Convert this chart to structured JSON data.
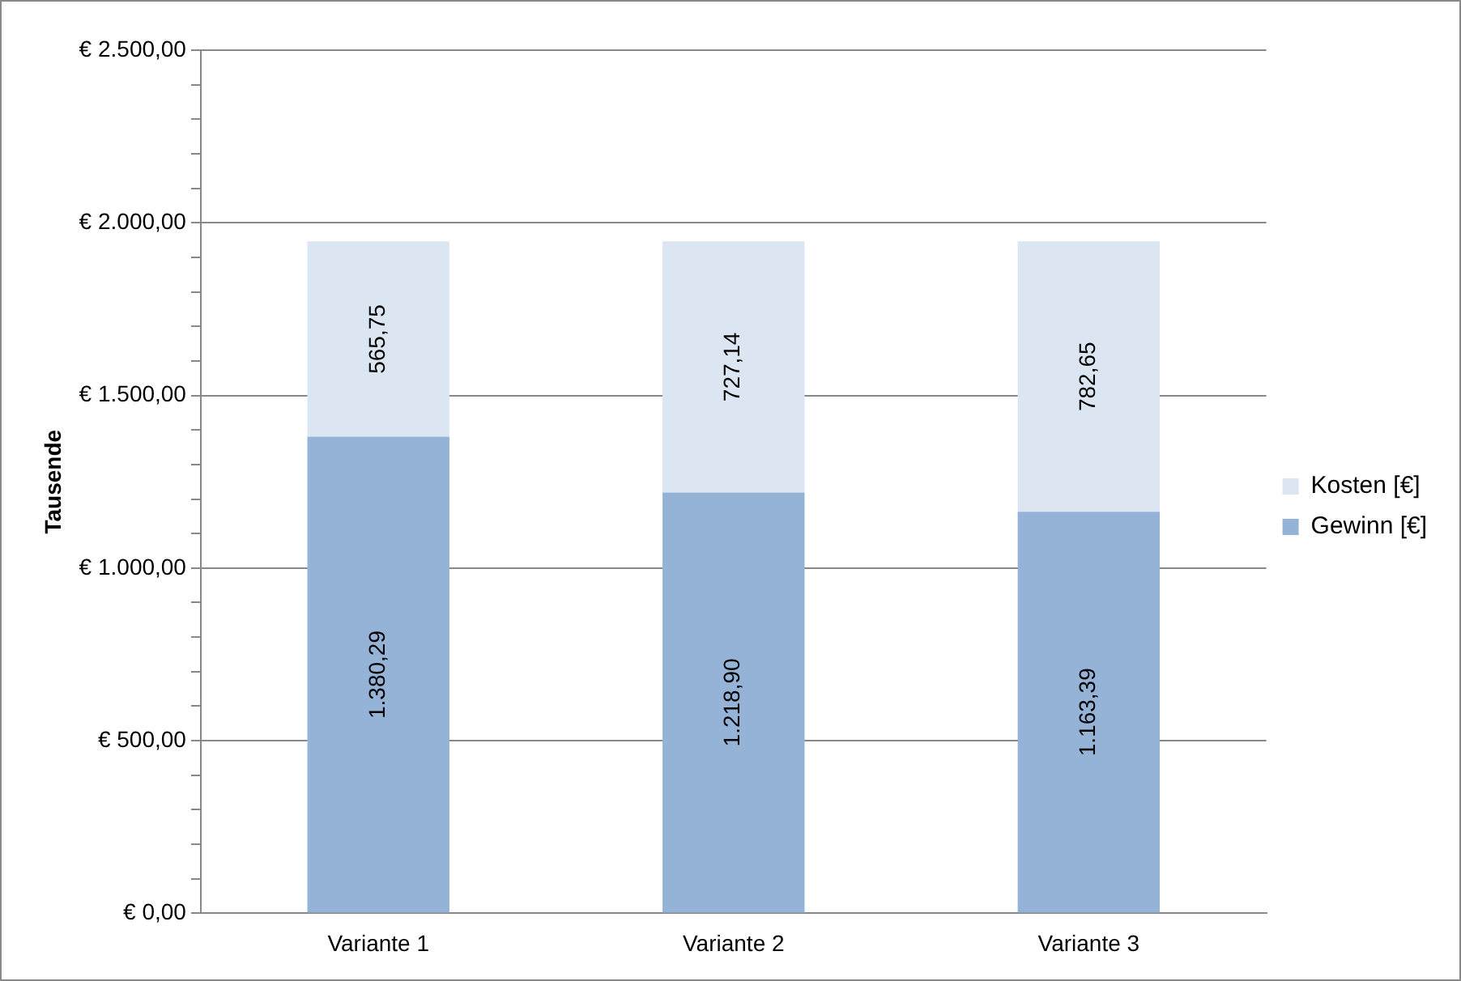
{
  "chart_data": {
    "type": "bar",
    "stacked": true,
    "ylabel": "Tausende",
    "categories": [
      "Variante 1",
      "Variante 2",
      "Variante 3"
    ],
    "series": [
      {
        "name": "Gewinn [€]",
        "color": "#95b3d7",
        "values": [
          1380.29,
          1218.9,
          1163.39
        ],
        "value_labels": [
          "1.380,29",
          "1.218,90",
          "1.163,39"
        ]
      },
      {
        "name": "Kosten [€]",
        "color": "#dce6f2",
        "values": [
          565.75,
          727.14,
          782.65
        ],
        "value_labels": [
          "565,75",
          "727,14",
          "782,65"
        ]
      }
    ],
    "ylim": [
      0,
      2500
    ],
    "yticks": [
      {
        "value": 0,
        "label": "€ 0,00"
      },
      {
        "value": 100,
        "label": null
      },
      {
        "value": 200,
        "label": null
      },
      {
        "value": 300,
        "label": null
      },
      {
        "value": 400,
        "label": null
      },
      {
        "value": 500,
        "label": "€ 500,00"
      },
      {
        "value": 600,
        "label": null
      },
      {
        "value": 700,
        "label": null
      },
      {
        "value": 800,
        "label": null
      },
      {
        "value": 900,
        "label": null
      },
      {
        "value": 1000,
        "label": "€ 1.000,00"
      },
      {
        "value": 1100,
        "label": null
      },
      {
        "value": 1200,
        "label": null
      },
      {
        "value": 1300,
        "label": null
      },
      {
        "value": 1400,
        "label": null
      },
      {
        "value": 1500,
        "label": "€ 1.500,00"
      },
      {
        "value": 1600,
        "label": null
      },
      {
        "value": 1700,
        "label": null
      },
      {
        "value": 1800,
        "label": null
      },
      {
        "value": 1900,
        "label": null
      },
      {
        "value": 2000,
        "label": "€ 2.000,00"
      },
      {
        "value": 2100,
        "label": null
      },
      {
        "value": 2200,
        "label": null
      },
      {
        "value": 2300,
        "label": null
      },
      {
        "value": 2400,
        "label": null
      },
      {
        "value": 2500,
        "label": "€ 2.500,00"
      }
    ],
    "grid": "y",
    "legend": "right"
  }
}
